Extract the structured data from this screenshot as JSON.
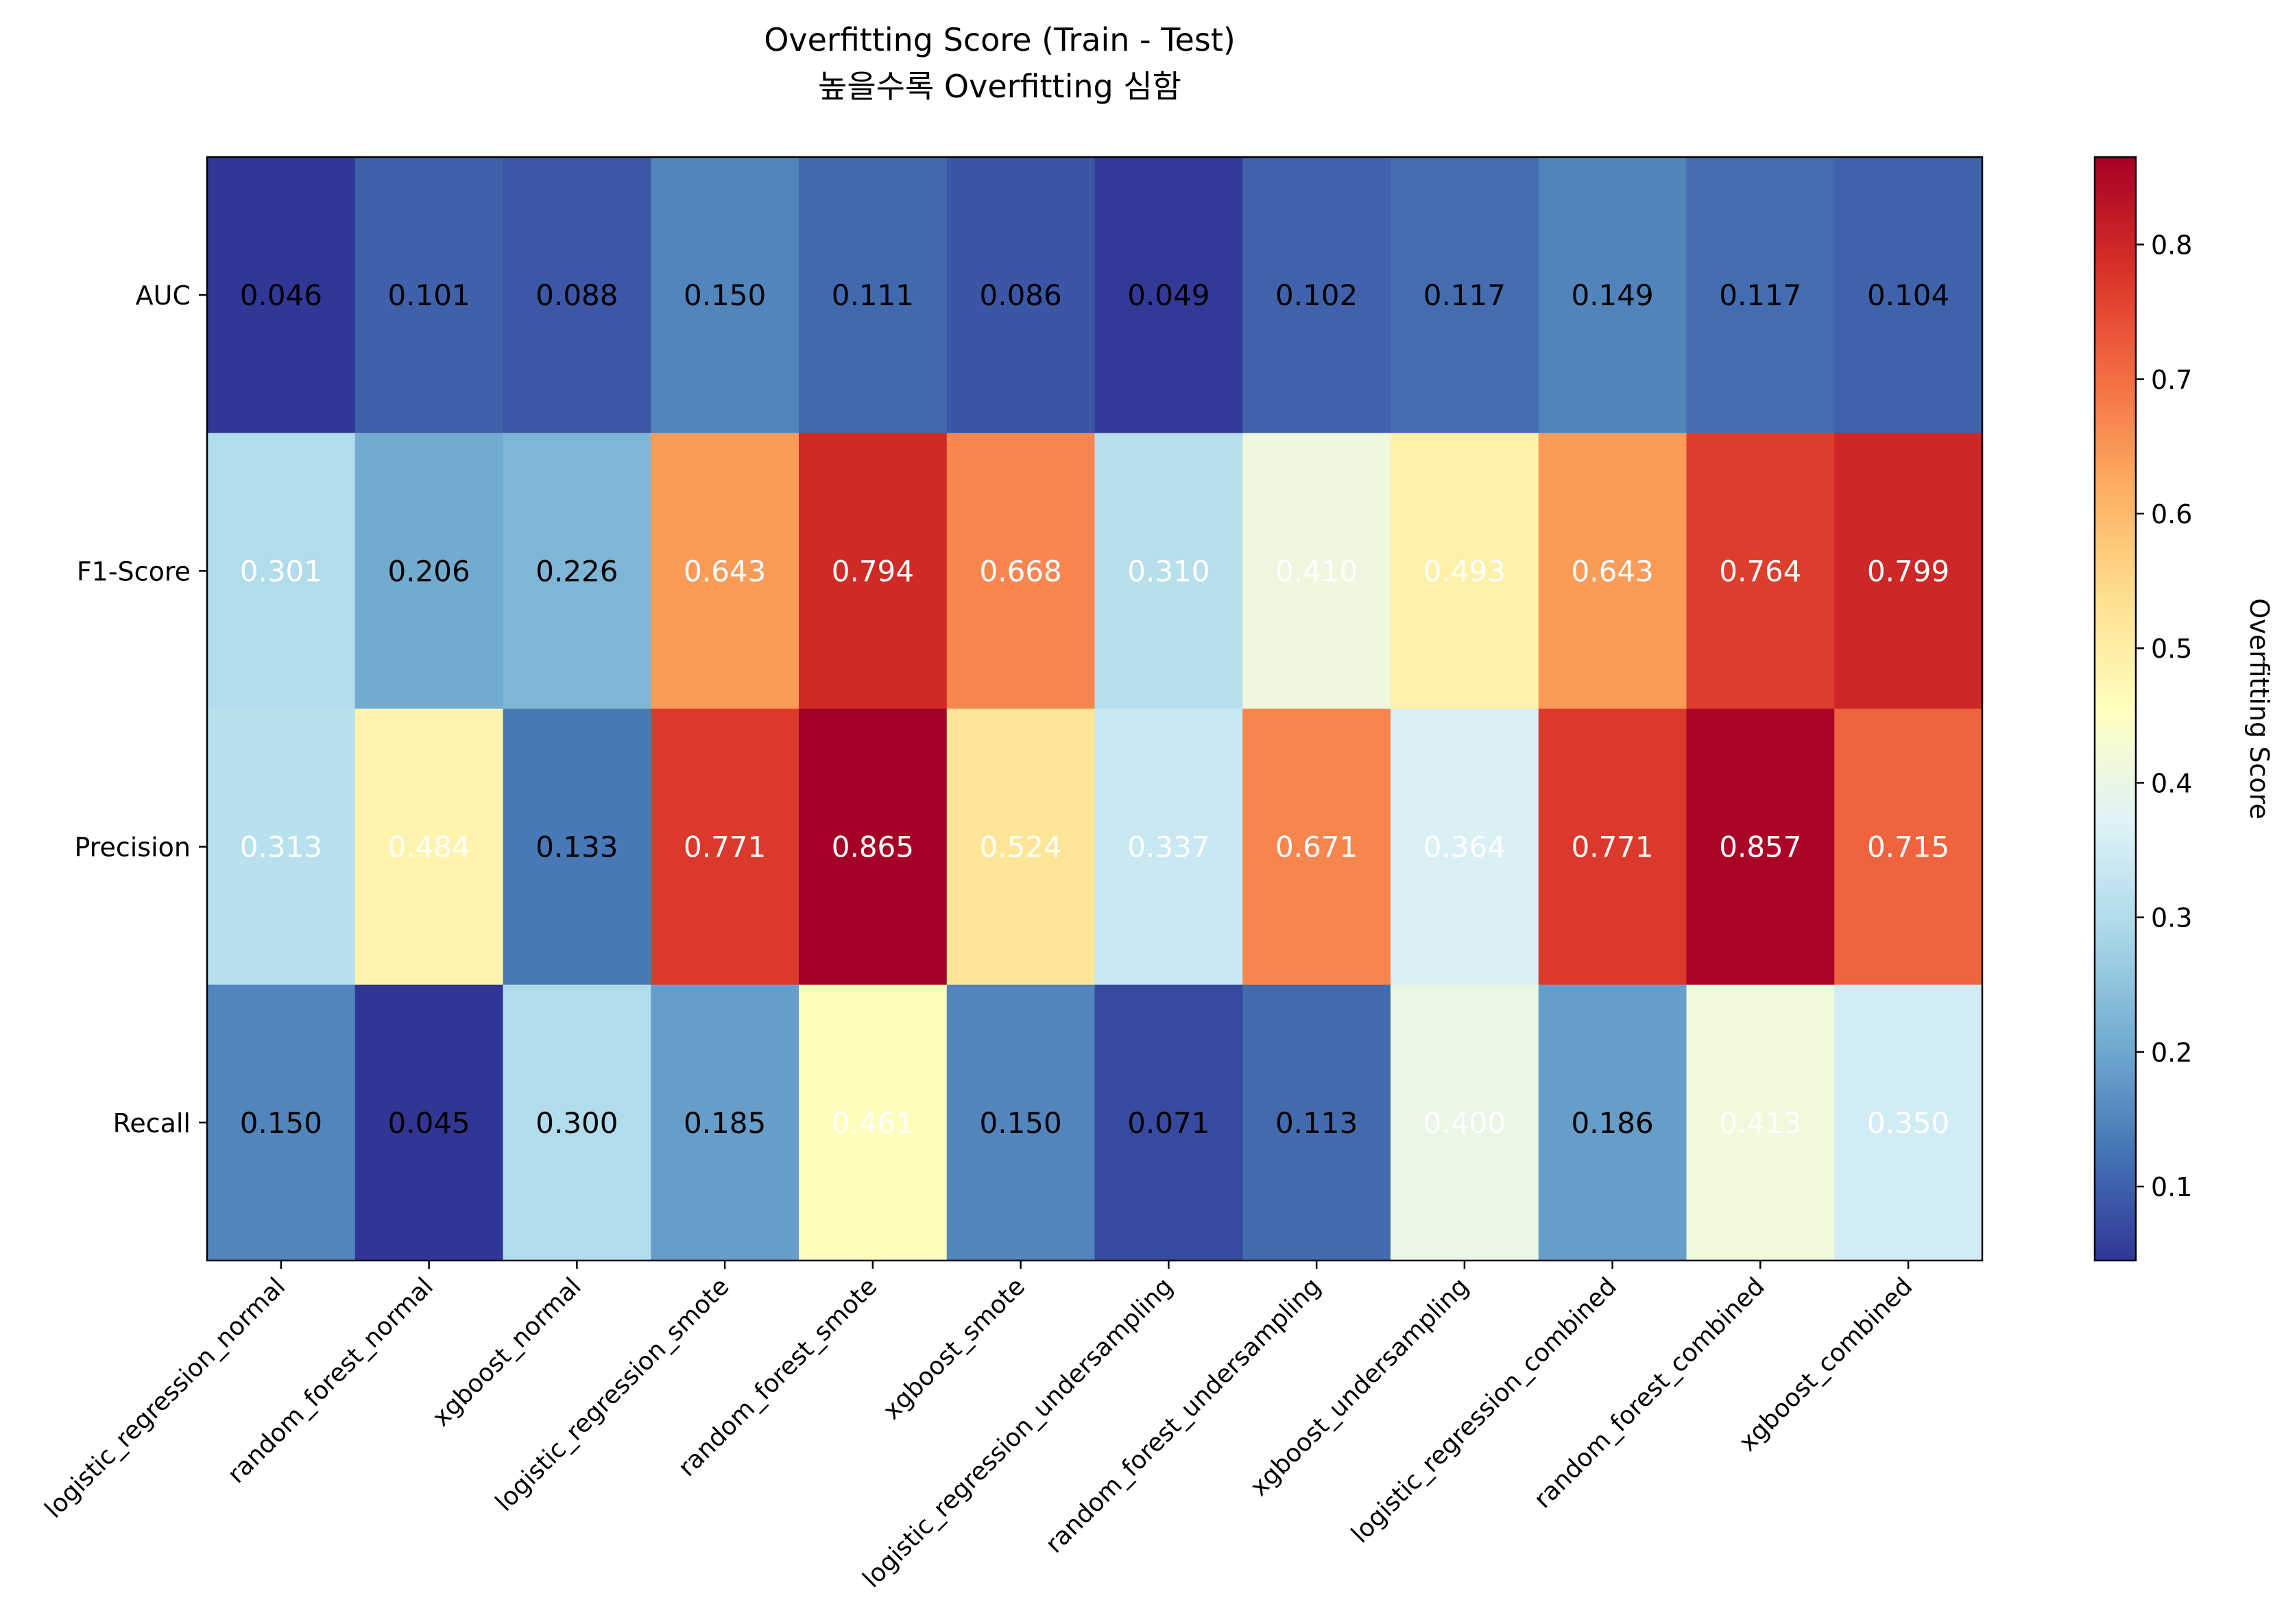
{
  "chart_data": {
    "type": "heatmap",
    "title": "Overfitting Score (Train - Test)",
    "subtitle": "높을수록 Overfitting 심함",
    "rows": [
      "AUC",
      "F1-Score",
      "Precision",
      "Recall"
    ],
    "columns": [
      "logistic_regression_normal",
      "random_forest_normal",
      "xgboost_normal",
      "logistic_regression_smote",
      "random_forest_smote",
      "xgboost_smote",
      "logistic_regression_undersampling",
      "random_forest_undersampling",
      "xgboost_undersampling",
      "logistic_regression_combined",
      "random_forest_combined",
      "xgboost_combined"
    ],
    "values": [
      [
        0.046,
        0.101,
        0.088,
        0.15,
        0.111,
        0.086,
        0.049,
        0.102,
        0.117,
        0.149,
        0.117,
        0.104
      ],
      [
        0.301,
        0.206,
        0.226,
        0.643,
        0.794,
        0.668,
        0.31,
        0.41,
        0.493,
        0.643,
        0.764,
        0.799
      ],
      [
        0.313,
        0.484,
        0.133,
        0.771,
        0.865,
        0.524,
        0.337,
        0.671,
        0.364,
        0.771,
        0.857,
        0.715
      ],
      [
        0.15,
        0.045,
        0.3,
        0.185,
        0.461,
        0.15,
        0.071,
        0.113,
        0.4,
        0.186,
        0.413,
        0.35
      ]
    ],
    "colormap": "RdYlBu_r",
    "color_range": [
      0.045,
      0.865
    ],
    "annotation_threshold": 0.3,
    "annotation_colors": {
      "dark": "#000000",
      "light": "#ffffff"
    },
    "colorbar": {
      "label": "Overfitting Score",
      "ticks": [
        0.1,
        0.2,
        0.3,
        0.4,
        0.5,
        0.6,
        0.7,
        0.8
      ],
      "tick_labels": [
        "0.1",
        "0.2",
        "0.3",
        "0.4",
        "0.5",
        "0.6",
        "0.7",
        "0.8"
      ]
    }
  }
}
